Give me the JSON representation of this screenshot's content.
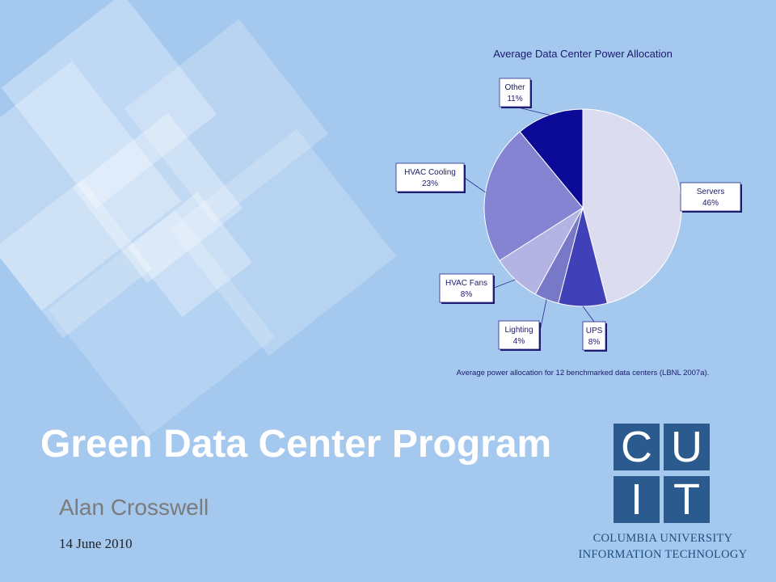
{
  "slide": {
    "title": "Green Data Center Program",
    "author": "Alan Crosswell",
    "date": "14 June 2010"
  },
  "logo": {
    "letters": [
      "C",
      "U",
      "I",
      "T"
    ],
    "org_line1": "COLUMBIA UNIVERSITY",
    "org_line2": "INFORMATION TECHNOLOGY",
    "color": "#2a5a8e"
  },
  "chart_data": {
    "type": "pie",
    "title": "Average Data Center Power Allocation",
    "caption": "Average power allocation for 12 benchmarked data centers (LBNL 2007a).",
    "slices": [
      {
        "label": "Servers",
        "value_label": "46%",
        "value": 46,
        "color": "#dcdcf0"
      },
      {
        "label": "UPS",
        "value_label": "8%",
        "value": 8,
        "color": "#4040b8"
      },
      {
        "label": "Lighting",
        "value_label": "4%",
        "value": 4,
        "color": "#7878c8"
      },
      {
        "label": "HVAC Fans",
        "value_label": "8%",
        "value": 8,
        "color": "#b4b4e4"
      },
      {
        "label": "HVAC Cooling",
        "value_label": "23%",
        "value": 23,
        "color": "#8484d2"
      },
      {
        "label": "Other",
        "value_label": "11%",
        "value": 11,
        "color": "#0a0a96"
      }
    ],
    "label_border_color": "#2a2a8c",
    "text_color": "#1a1a6e"
  }
}
